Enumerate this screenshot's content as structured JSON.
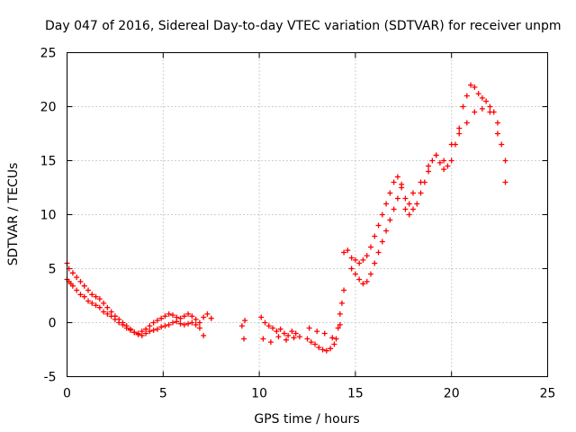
{
  "chart_data": {
    "type": "scatter",
    "title": "Day 047 of 2016, Sidereal Day-to-day VTEC variation (SDTVAR) for receiver unpm",
    "xlabel": "GPS time / hours",
    "ylabel": "SDTVAR / TECUs",
    "xlim": [
      0,
      25
    ],
    "ylim": [
      -5,
      25
    ],
    "x_ticks": [
      "0",
      "5",
      "10",
      "15",
      "20",
      "25"
    ],
    "y_ticks": [
      "-5",
      "0",
      "5",
      "10",
      "15",
      "20",
      "25"
    ],
    "x_tick_values": [
      0,
      5,
      10,
      15,
      20,
      25
    ],
    "y_tick_values": [
      -5,
      0,
      5,
      10,
      15,
      20,
      25
    ],
    "grid": true,
    "marker": "+",
    "series_color": "#ff0000",
    "series": [
      {
        "name": "SDTVAR",
        "x": [
          0.0,
          0.1,
          0.2,
          0.3,
          0.5,
          0.7,
          0.9,
          1.1,
          1.3,
          1.5,
          1.7,
          1.9,
          2.1,
          2.3,
          2.5,
          2.7,
          2.9,
          3.1,
          3.3,
          3.5,
          3.7,
          3.9,
          4.1,
          4.3,
          4.5,
          4.7,
          4.9,
          5.1,
          5.3,
          5.5,
          5.7,
          5.9,
          6.1,
          6.3,
          6.5,
          6.7,
          6.9,
          7.1,
          7.3,
          7.5,
          0.0,
          0.1,
          0.3,
          0.5,
          0.7,
          0.9,
          1.1,
          1.3,
          1.5,
          1.7,
          1.9,
          2.1,
          2.3,
          2.5,
          2.7,
          2.9,
          3.1,
          3.3,
          3.5,
          3.7,
          3.9,
          4.1,
          4.3,
          4.5,
          4.7,
          4.9,
          5.1,
          5.3,
          5.5,
          5.7,
          5.9,
          6.1,
          6.3,
          6.5,
          6.7,
          6.9,
          7.1,
          9.1,
          9.2,
          9.25,
          10.1,
          10.3,
          10.5,
          10.7,
          10.9,
          11.1,
          11.3,
          11.5,
          11.7,
          11.9,
          12.1,
          10.2,
          10.6,
          11.0,
          11.4,
          11.8,
          12.5,
          12.7,
          12.9,
          13.1,
          13.3,
          13.5,
          13.7,
          13.9,
          14.0,
          14.1,
          14.2,
          14.3,
          14.4,
          12.6,
          13.0,
          13.4,
          13.8,
          14.2,
          14.4,
          14.6,
          14.8,
          15.0,
          15.2,
          15.4,
          15.6,
          15.8,
          16.0,
          16.2,
          16.4,
          16.6,
          16.8,
          17.0,
          17.2,
          17.4,
          14.8,
          15.0,
          15.2,
          15.4,
          15.6,
          15.8,
          16.0,
          16.2,
          16.4,
          16.6,
          16.8,
          17.0,
          17.2,
          17.4,
          17.6,
          17.8,
          18.0,
          18.2,
          18.4,
          18.6,
          18.8,
          19.0,
          19.2,
          19.4,
          19.6,
          19.8,
          20.0,
          20.2,
          20.4,
          20.6,
          20.8,
          21.0,
          21.2,
          21.4,
          21.6,
          21.8,
          22.0,
          22.2,
          22.4,
          22.6,
          22.8,
          17.6,
          17.8,
          18.0,
          18.4,
          18.8,
          19.2,
          19.6,
          20.0,
          20.4,
          20.8,
          21.2,
          21.6,
          22.0,
          22.4,
          22.8
        ],
        "y": [
          4.0,
          3.8,
          3.6,
          3.4,
          3.0,
          2.6,
          2.4,
          2.0,
          1.8,
          1.6,
          1.4,
          1.0,
          0.8,
          0.6,
          0.3,
          0.0,
          -0.2,
          -0.5,
          -0.7,
          -0.9,
          -1.0,
          -0.8,
          -0.6,
          -0.3,
          0.0,
          0.2,
          0.4,
          0.6,
          0.8,
          0.7,
          0.5,
          0.4,
          0.6,
          0.8,
          0.6,
          0.3,
          0.0,
          0.5,
          0.8,
          0.4,
          5.5,
          5.0,
          4.6,
          4.2,
          3.8,
          3.4,
          3.0,
          2.6,
          2.4,
          2.2,
          1.8,
          1.4,
          1.0,
          0.6,
          0.3,
          0.0,
          -0.3,
          -0.6,
          -0.9,
          -1.1,
          -1.2,
          -1.0,
          -0.8,
          -0.7,
          -0.6,
          -0.4,
          -0.3,
          -0.2,
          0.0,
          0.1,
          -0.1,
          -0.2,
          -0.1,
          0.0,
          -0.2,
          -0.5,
          -1.2,
          -0.3,
          -1.5,
          0.2,
          0.5,
          0.0,
          -0.3,
          -0.5,
          -0.8,
          -0.6,
          -1.0,
          -1.2,
          -0.8,
          -1.0,
          -1.3,
          -1.5,
          -1.8,
          -1.3,
          -1.6,
          -1.4,
          -1.5,
          -1.8,
          -2.0,
          -2.3,
          -2.5,
          -2.6,
          -2.4,
          -2.0,
          -1.5,
          -0.5,
          0.8,
          1.8,
          3.0,
          -0.5,
          -0.8,
          -1.0,
          -1.4,
          -0.2,
          6.5,
          6.7,
          6.0,
          5.8,
          5.5,
          5.8,
          6.2,
          7.0,
          8.0,
          9.0,
          10.0,
          11.0,
          12.0,
          13.0,
          13.5,
          12.8,
          5.0,
          4.5,
          4.0,
          3.6,
          3.8,
          4.5,
          5.5,
          6.5,
          7.5,
          8.5,
          9.5,
          10.5,
          11.5,
          12.5,
          11.5,
          10.0,
          10.5,
          11.0,
          12.0,
          13.0,
          14.0,
          15.0,
          15.5,
          14.8,
          14.2,
          14.5,
          15.0,
          16.5,
          18.0,
          20.0,
          21.0,
          22.0,
          21.8,
          21.2,
          20.8,
          20.5,
          20.0,
          19.5,
          18.5,
          16.5,
          15.0,
          10.5,
          11.0,
          12.0,
          13.0,
          14.5,
          15.5,
          15.0,
          16.5,
          17.5,
          18.5,
          19.5,
          19.8,
          19.5,
          17.5,
          13.0
        ]
      }
    ]
  }
}
